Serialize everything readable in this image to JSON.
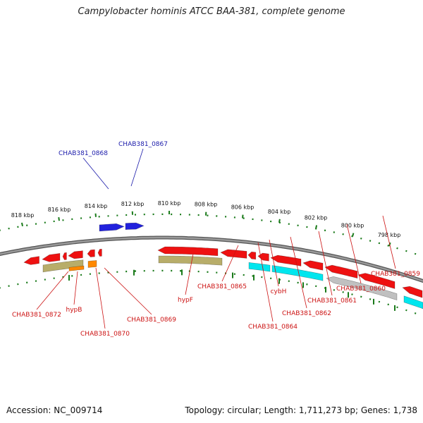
{
  "title": "Campylobacter hominis ATCC BAA-381, complete genome",
  "footer": {
    "accession": "Accession: NC_009714",
    "topology": "Topology: circular; Length: 1,711,273 bp; Genes: 1,738"
  },
  "colors": {
    "backbone": "#7a7a7a",
    "tick": "#1a7a1a",
    "forward_cds": "#2222dd",
    "reverse_cds": "#ee1111",
    "rna": "#00e6ee",
    "pseudo": "#c0c0c0",
    "gene_block": "#b8ad6a",
    "orange_gene": "#ff8800",
    "forward_label": "#1a1aaa",
    "reverse_label": "#cc1111"
  },
  "scale_labels": [
    "818 kbp",
    "816 kbp",
    "814 kbp",
    "812 kbp",
    "810 kbp",
    "808 kbp",
    "806 kbp",
    "804 kbp",
    "802 kbp",
    "800 kbp",
    "798 kbp"
  ],
  "forward_labels": [
    "CHAB381_0868",
    "CHAB381_0867"
  ],
  "reverse_labels": [
    "CHAB381_0872",
    "hypB",
    "CHAB381_0870",
    "CHAB381_0869",
    "hypF",
    "CHAB381_0865",
    "CHAB381_0864",
    "cybH",
    "CHAB381_0862",
    "CHAB381_0861",
    "CHAB381_0860",
    "CHAB381_0859"
  ]
}
